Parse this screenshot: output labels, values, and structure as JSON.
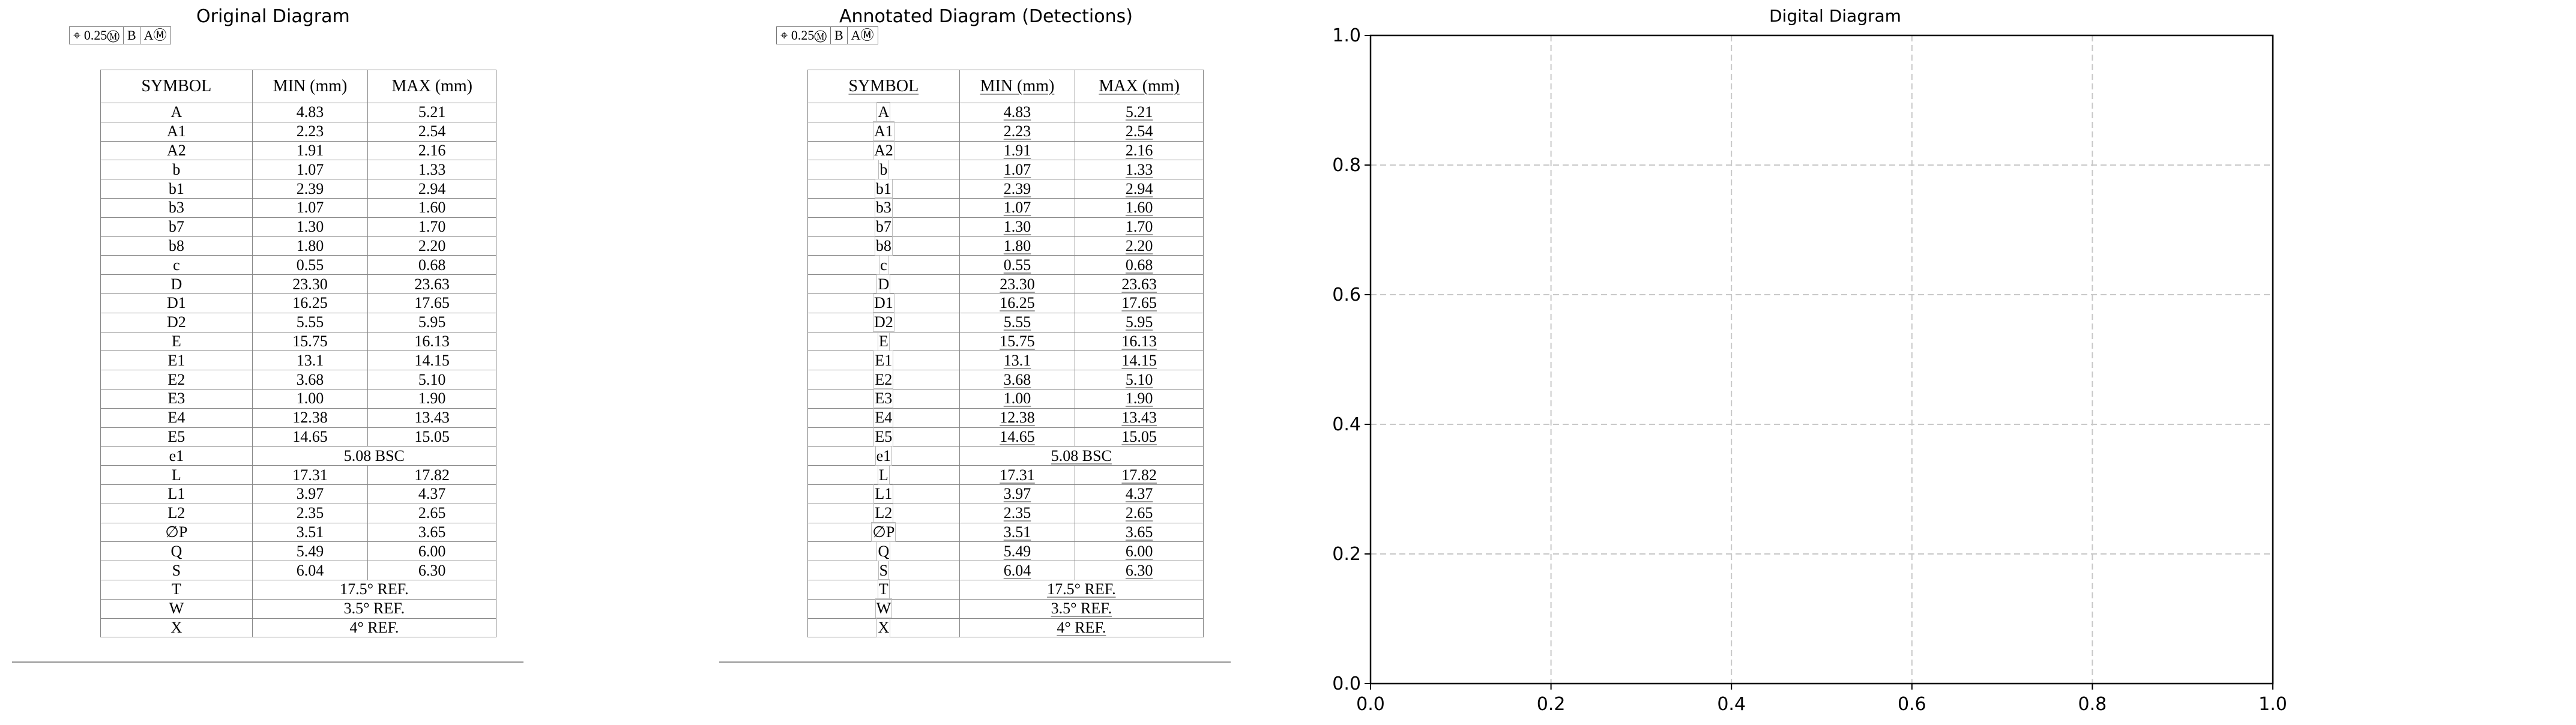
{
  "panels": {
    "original_title": "Original Diagram",
    "annotated_title": "Annotated Diagram (Detections)",
    "digital_title": "Digital Diagram"
  },
  "tolerance": {
    "symbol": "⌖",
    "value": "0.25",
    "modifier": "Ⓜ",
    "datum1": "B",
    "datum2": "A",
    "datum2_modifier": "Ⓜ"
  },
  "table": {
    "headers": [
      "SYMBOL",
      "MIN (mm)",
      "MAX (mm)"
    ],
    "rows": [
      {
        "symbol": "A",
        "min": "4.83",
        "max": "5.21"
      },
      {
        "symbol": "A1",
        "min": "2.23",
        "max": "2.54"
      },
      {
        "symbol": "A2",
        "min": "1.91",
        "max": "2.16"
      },
      {
        "symbol": "b",
        "min": "1.07",
        "max": "1.33"
      },
      {
        "symbol": "b1",
        "min": "2.39",
        "max": "2.94"
      },
      {
        "symbol": "b3",
        "min": "1.07",
        "max": "1.60"
      },
      {
        "symbol": "b7",
        "min": "1.30",
        "max": "1.70"
      },
      {
        "symbol": "b8",
        "min": "1.80",
        "max": "2.20"
      },
      {
        "symbol": "c",
        "min": "0.55",
        "max": "0.68"
      },
      {
        "symbol": "D",
        "min": "23.30",
        "max": "23.63"
      },
      {
        "symbol": "D1",
        "min": "16.25",
        "max": "17.65"
      },
      {
        "symbol": "D2",
        "min": "5.55",
        "max": "5.95"
      },
      {
        "symbol": "E",
        "min": "15.75",
        "max": "16.13"
      },
      {
        "symbol": "E1",
        "min": "13.1",
        "max": "14.15"
      },
      {
        "symbol": "E2",
        "min": "3.68",
        "max": "5.10"
      },
      {
        "symbol": "E3",
        "min": "1.00",
        "max": "1.90"
      },
      {
        "symbol": "E4",
        "min": "12.38",
        "max": "13.43"
      },
      {
        "symbol": "E5",
        "min": "14.65",
        "max": "15.05"
      },
      {
        "symbol": "e1",
        "span": "5.08 BSC"
      },
      {
        "symbol": "L",
        "min": "17.31",
        "max": "17.82"
      },
      {
        "symbol": "L1",
        "min": "3.97",
        "max": "4.37"
      },
      {
        "symbol": "L2",
        "min": "2.35",
        "max": "2.65"
      },
      {
        "symbol": "∅P",
        "min": "3.51",
        "max": "3.65"
      },
      {
        "symbol": "Q",
        "min": "5.49",
        "max": "6.00"
      },
      {
        "symbol": "S",
        "min": "6.04",
        "max": "6.30"
      },
      {
        "symbol": "T",
        "span": "17.5° REF."
      },
      {
        "symbol": "W",
        "span": "3.5° REF."
      },
      {
        "symbol": "X",
        "span": "4° REF."
      }
    ]
  },
  "digital_plot": {
    "x_ticks": [
      "0.0",
      "0.2",
      "0.4",
      "0.6",
      "0.8",
      "1.0"
    ],
    "y_ticks": [
      "0.0",
      "0.2",
      "0.4",
      "0.6",
      "0.8",
      "1.0"
    ],
    "xlim": [
      0,
      1
    ],
    "ylim": [
      0,
      1
    ],
    "grid": true
  }
}
